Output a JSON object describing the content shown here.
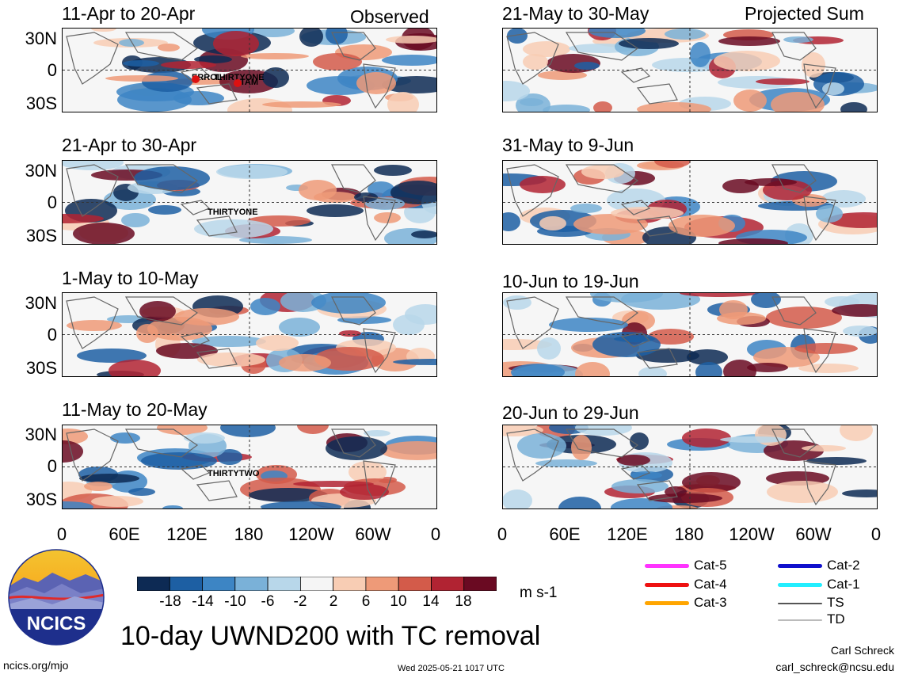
{
  "header": {
    "left_label": "Observed",
    "right_label": "Projected Sum"
  },
  "panels_left": [
    {
      "period": "11-Apr to 20-Apr",
      "storms": [
        "ERROL",
        "THIRTYONE",
        "TAM"
      ]
    },
    {
      "period": "21-Apr to 30-Apr",
      "storms": [
        "THIRTYONE"
      ]
    },
    {
      "period": "1-May to 10-May",
      "storms": []
    },
    {
      "period": "11-May to 20-May",
      "storms": [
        "THIRTYTWO"
      ]
    }
  ],
  "panels_right": [
    {
      "period": "21-May to 30-May"
    },
    {
      "period": "31-May to 9-Jun"
    },
    {
      "period": "10-Jun to 19-Jun"
    },
    {
      "period": "20-Jun to 29-Jun"
    }
  ],
  "axes": {
    "y_ticks": [
      "30N",
      "0",
      "30S"
    ],
    "x_ticks": [
      "0",
      "60E",
      "120E",
      "180",
      "120W",
      "60W",
      "0"
    ]
  },
  "colorbar": {
    "ticks": [
      "-18",
      "-14",
      "-10",
      "-6",
      "-2",
      "2",
      "6",
      "10",
      "14",
      "18"
    ],
    "units": "m s-1",
    "colors": [
      "#0d2a54",
      "#1d5fa3",
      "#3d85c4",
      "#7ab1d8",
      "#b8d7ea",
      "#f5f5f5",
      "#f8cdb4",
      "#ee9a78",
      "#d35b4a",
      "#b12332",
      "#6a0a22"
    ]
  },
  "legend": {
    "items": [
      {
        "label": "Cat-5",
        "color": "#ff33ff"
      },
      {
        "label": "Cat-4",
        "color": "#ee1111"
      },
      {
        "label": "Cat-3",
        "color": "#ffa500"
      },
      {
        "label": "Cat-2",
        "color": "#1010cc"
      },
      {
        "label": "Cat-1",
        "color": "#22eeff"
      },
      {
        "label": "TS",
        "color": "#555555"
      },
      {
        "label": "TD",
        "color": "#bbbbbb"
      }
    ]
  },
  "logo": {
    "text": "NCICS"
  },
  "footer": {
    "title": "10-day UWND200 with TC removal",
    "url": "ncics.org/mjo",
    "timestamp": "Wed 2025-05-21 1017 UTC",
    "author": "Carl Schreck",
    "email": "carl_schreck@ncsu.edu"
  }
}
